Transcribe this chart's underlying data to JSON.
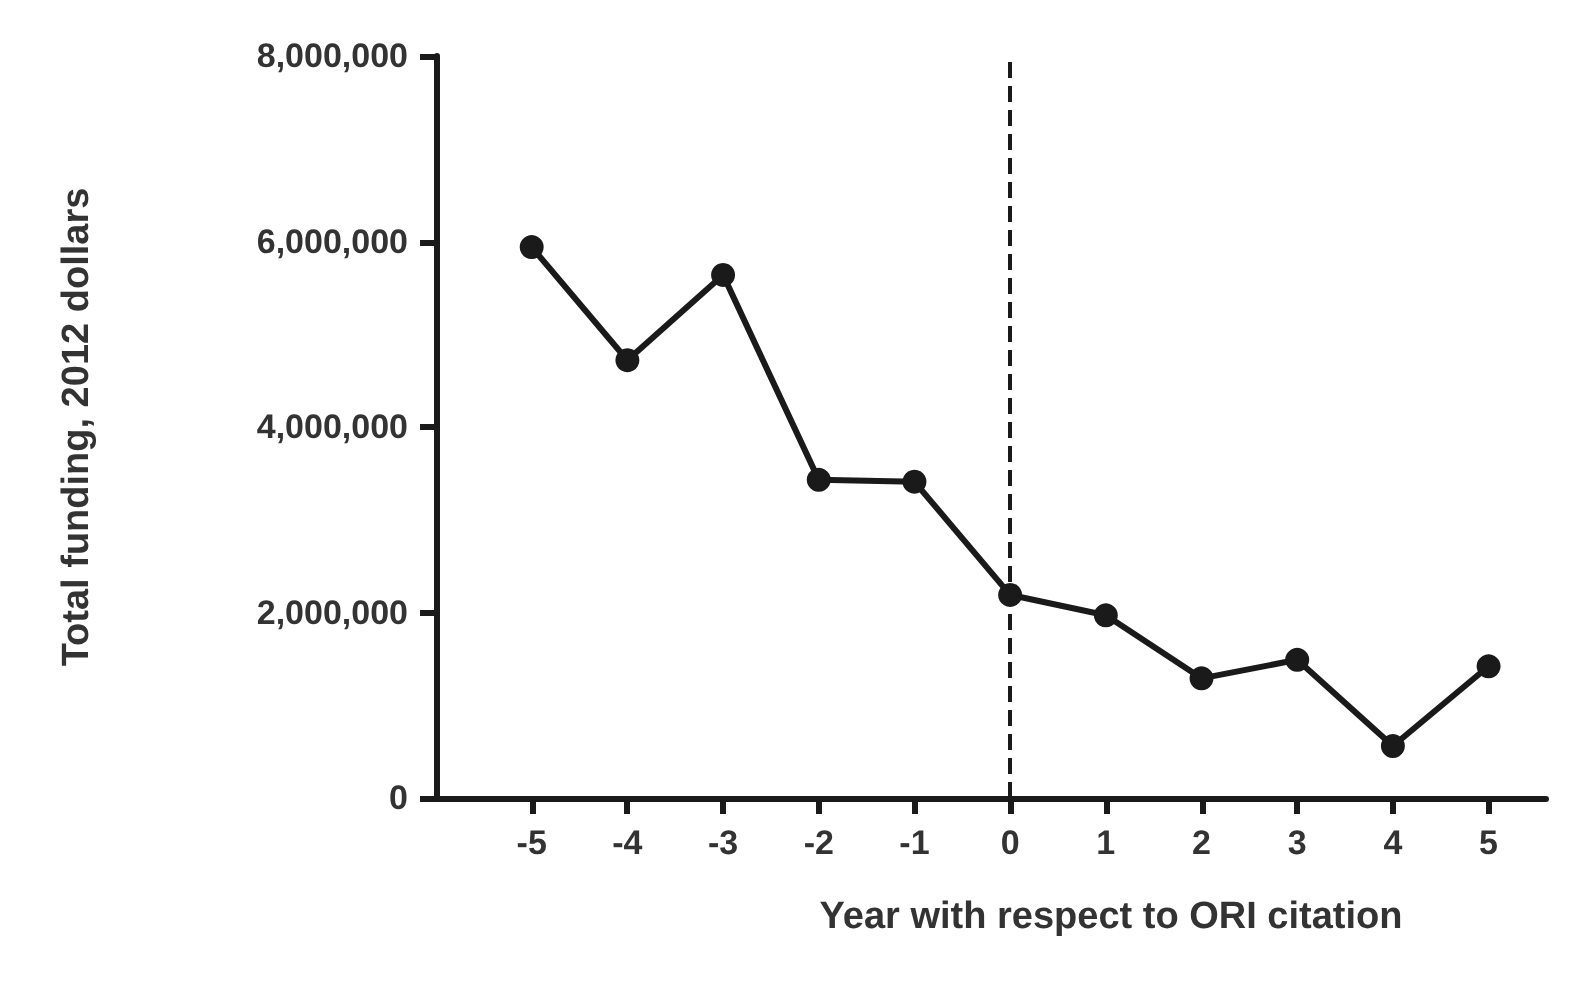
{
  "chart_data": {
    "type": "line",
    "xlabel": "Year with respect to ORI citation",
    "ylabel": "Total funding, 2012 dollars",
    "x": [
      -5,
      -4,
      -3,
      -2,
      -1,
      0,
      1,
      2,
      3,
      4,
      5
    ],
    "series": [
      {
        "color": "#1a1a1a",
        "values": [
          5940000,
          4720000,
          5640000,
          3430000,
          3410000,
          2190000,
          1970000,
          1290000,
          1490000,
          560000,
          1420000
        ]
      }
    ],
    "xlim": [
      -6,
      5.6
    ],
    "xticks": [
      -5,
      -4,
      -3,
      -2,
      -1,
      0,
      1,
      2,
      3,
      4,
      5
    ],
    "ylim": [
      0,
      8000000
    ],
    "yticks": [
      {
        "value": 0,
        "label": "0"
      },
      {
        "value": 2000000,
        "label": "2,000,000"
      },
      {
        "value": 4000000,
        "label": "4,000,000"
      },
      {
        "value": 6000000,
        "label": "6,000,000"
      },
      {
        "value": 8000000,
        "label": "8,000,000"
      }
    ],
    "ref_lines": [
      {
        "axis": "x",
        "value": 0,
        "color": "#1a1a1a",
        "line_style": "dashed"
      }
    ],
    "grid": false,
    "marker": "circle",
    "line_style": "solid"
  }
}
